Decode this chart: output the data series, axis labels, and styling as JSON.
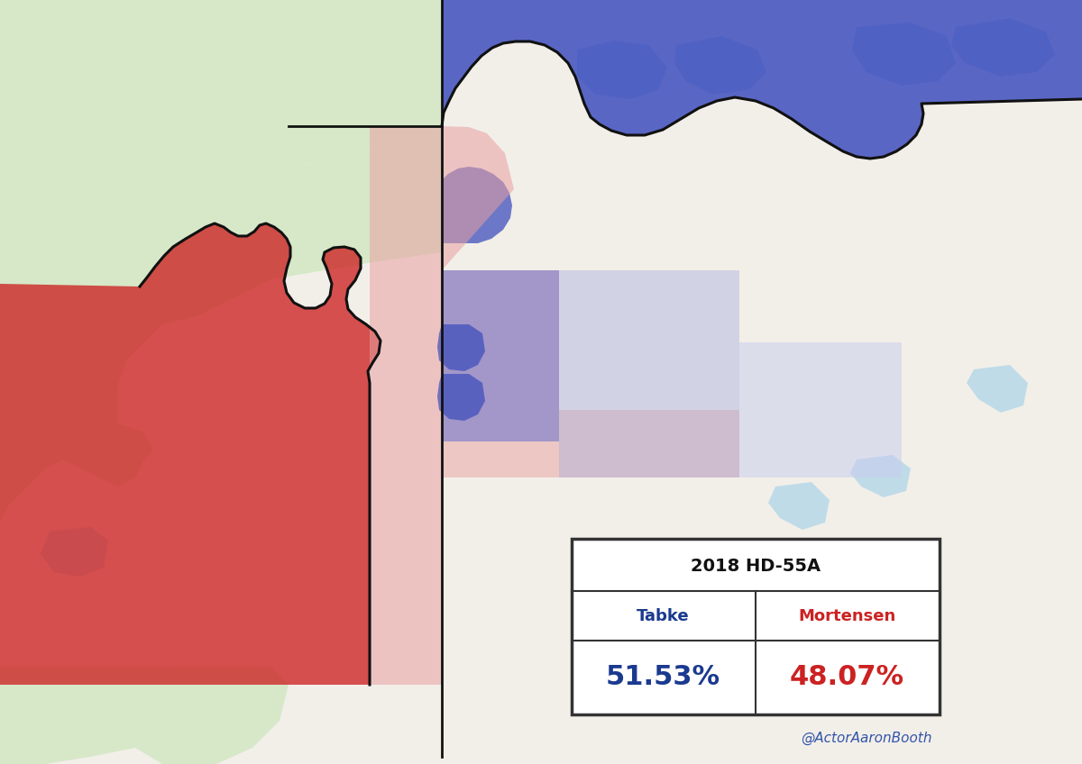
{
  "title": "2018 HD-55A",
  "candidate1_name": "Tabke",
  "candidate1_pct": "51.53%",
  "candidate1_color": "#1a3a8f",
  "candidate2_name": "Mortensen",
  "candidate2_pct": "48.07%",
  "candidate2_color": "#cc2222",
  "attribution": "@ActorAaronBooth",
  "attribution_color": "#3355aa",
  "figsize": [
    12.0,
    8.48
  ],
  "map_bg": "#f2efe9",
  "map_green": "#d6e8c8",
  "map_water": "#b8d8e8",
  "map_road_major": "#f5c842",
  "map_road_minor": "#ffffff",
  "red_dark": "#cc2222",
  "red_light": "#e8a0a0",
  "blue_dark": "#3344bb",
  "blue_medium": "#6670cc",
  "blue_light": "#aab0dd",
  "blue_vlight": "#c8ccee"
}
